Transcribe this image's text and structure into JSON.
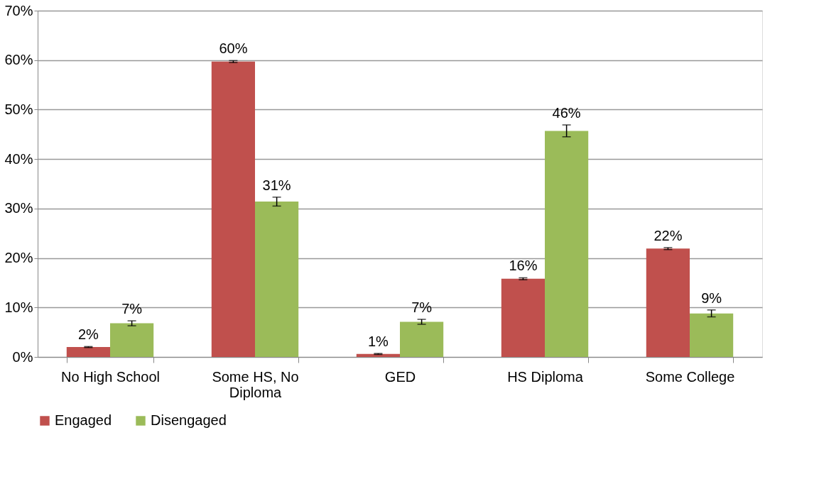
{
  "chart_data": {
    "type": "bar",
    "categories": [
      "No High School",
      "Some HS, No Diploma",
      "GED",
      "HS Diploma",
      "Some College"
    ],
    "series": [
      {
        "name": "Engaged",
        "color": "#c0504d",
        "values": [
          2.0,
          59.7,
          0.6,
          15.8,
          21.9
        ],
        "errors": [
          0.1,
          0.2,
          0.1,
          0.2,
          0.2
        ],
        "value_labels": [
          "2%",
          "60%",
          "1%",
          "16%",
          "22%"
        ]
      },
      {
        "name": "Disengaged",
        "color": "#9bbb59",
        "values": [
          6.8,
          31.4,
          7.1,
          45.7,
          8.8
        ],
        "errors": [
          0.5,
          0.9,
          0.5,
          1.2,
          0.7
        ],
        "value_labels": [
          "7%",
          "31%",
          "7%",
          "46%",
          "9%"
        ]
      }
    ],
    "ylim": [
      0,
      70
    ],
    "yticks": [
      {
        "value": 0,
        "label": "0%"
      },
      {
        "value": 10,
        "label": "10%"
      },
      {
        "value": 20,
        "label": "20%"
      },
      {
        "value": 30,
        "label": "30%"
      },
      {
        "value": 40,
        "label": "40%"
      },
      {
        "value": 50,
        "label": "50%"
      },
      {
        "value": 60,
        "label": "60%"
      },
      {
        "value": 70,
        "label": "70%"
      }
    ],
    "grid": "y",
    "legend": "bottom"
  }
}
